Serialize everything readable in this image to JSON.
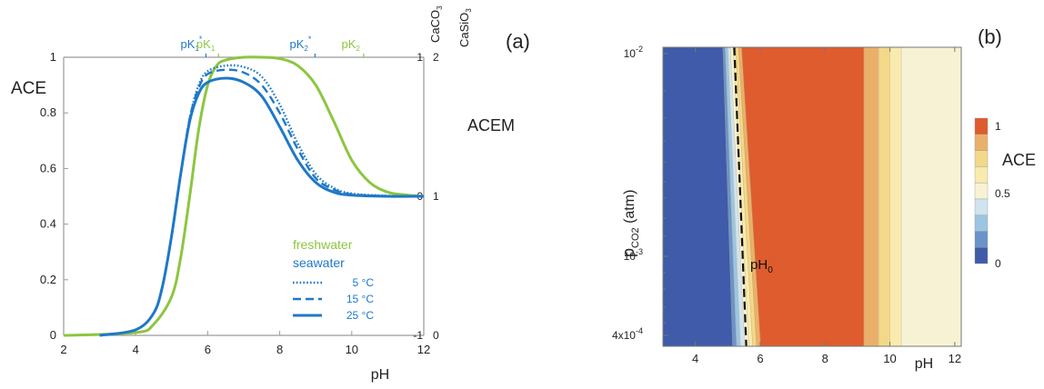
{
  "chart_data": [
    {
      "panel_label": "(a)",
      "type": "line",
      "xlabel": "pH",
      "ylabel": "ACE",
      "xlim": [
        2,
        12
      ],
      "ylim": [
        0,
        1
      ],
      "xticks": [
        "2",
        "4",
        "6",
        "8",
        "10",
        "12"
      ],
      "yticks": [
        "0",
        "0.2",
        "0.4",
        "0.6",
        "0.8",
        "1"
      ],
      "right_axes": {
        "label": "ACEM",
        "caco3": {
          "title": "CaCO",
          "sub": "3",
          "ticks": [
            "-1",
            "0",
            "1"
          ]
        },
        "casio3": {
          "title": "CaSiO",
          "sub": "3",
          "ticks": [
            "0",
            "1",
            "2"
          ]
        }
      },
      "top_marks": [
        {
          "text": "pK",
          "sub": "1",
          "sup": "*",
          "x": 5.95,
          "color": "#1f78c8"
        },
        {
          "text": "pK",
          "sub": "1",
          "sup": "",
          "x": 6.3,
          "color": "#8cc63f"
        },
        {
          "text": "pK",
          "sub": "2",
          "sup": "*",
          "x": 8.98,
          "color": "#1f78c8"
        },
        {
          "text": "pK",
          "sub": "2",
          "sup": "",
          "x": 10.33,
          "color": "#8cc63f"
        }
      ],
      "legend": {
        "freshwater": "freshwater",
        "seawater": "seawater",
        "items": [
          "5 °C",
          "15 °C",
          "25 °C"
        ]
      },
      "series": [
        {
          "name": "freshwater",
          "color": "#8cc63f",
          "style": "solid",
          "x": [
            2,
            4,
            4.5,
            5,
            5.25,
            5.5,
            5.75,
            6,
            6.25,
            6.5,
            7,
            7.5,
            8,
            8.5,
            9,
            9.5,
            10,
            10.5,
            11,
            11.5,
            12
          ],
          "y": [
            0,
            0.01,
            0.04,
            0.14,
            0.28,
            0.5,
            0.74,
            0.9,
            0.97,
            0.99,
            1.0,
            1.0,
            0.995,
            0.97,
            0.9,
            0.77,
            0.63,
            0.55,
            0.515,
            0.505,
            0.5
          ]
        },
        {
          "name": "5 °C",
          "color": "#1f78c8",
          "style": "dotted",
          "x": [
            3,
            4,
            4.5,
            4.75,
            5,
            5.25,
            5.5,
            5.75,
            6,
            6.5,
            7,
            7.5,
            8,
            8.5,
            9,
            9.5,
            10,
            11,
            12
          ],
          "y": [
            0,
            0.02,
            0.08,
            0.18,
            0.36,
            0.58,
            0.78,
            0.9,
            0.95,
            0.97,
            0.965,
            0.93,
            0.83,
            0.69,
            0.58,
            0.53,
            0.51,
            0.502,
            0.5
          ]
        },
        {
          "name": "15 °C",
          "color": "#1f78c8",
          "style": "dashed",
          "x": [
            3,
            4,
            4.5,
            4.75,
            5,
            5.25,
            5.5,
            5.75,
            6,
            6.5,
            7,
            7.5,
            8,
            8.5,
            9,
            9.5,
            10,
            11,
            12
          ],
          "y": [
            0,
            0.02,
            0.08,
            0.18,
            0.36,
            0.58,
            0.78,
            0.89,
            0.94,
            0.955,
            0.945,
            0.9,
            0.8,
            0.67,
            0.565,
            0.525,
            0.507,
            0.501,
            0.5
          ]
        },
        {
          "name": "25 °C",
          "color": "#1f78c8",
          "style": "solid",
          "x": [
            3,
            4,
            4.5,
            4.75,
            5,
            5.25,
            5.5,
            5.75,
            6,
            6.5,
            7,
            7.5,
            8,
            8.5,
            9,
            9.5,
            10,
            11,
            12
          ],
          "y": [
            0,
            0.02,
            0.08,
            0.18,
            0.36,
            0.58,
            0.77,
            0.87,
            0.91,
            0.925,
            0.91,
            0.86,
            0.75,
            0.63,
            0.55,
            0.515,
            0.504,
            0.5,
            0.5
          ]
        }
      ]
    },
    {
      "panel_label": "(b)",
      "type": "heatmap",
      "xlabel": "pH",
      "ylabel": "p",
      "ylabel_sub": "CO2",
      "ylabel_unit": " (atm)",
      "xlim": [
        3,
        12.2
      ],
      "xticks": [
        "4",
        "6",
        "8",
        "10",
        "12"
      ],
      "ylim": [
        "4x10-4",
        "10-2"
      ],
      "yscale": "log",
      "yticks": [
        {
          "base": "10",
          "exp": "-2"
        },
        {
          "base": "10",
          "exp": "-3"
        },
        {
          "base": "4x10",
          "exp": "-4"
        }
      ],
      "annotation": {
        "text": "pH",
        "sub": "0"
      },
      "colorbar": {
        "label": "ACE",
        "ticks": [
          "1",
          "0.5",
          "0"
        ],
        "colors": [
          "#3f5ba9",
          "#6a93c9",
          "#9cc5e2",
          "#cfe4ef",
          "#f7f2d4",
          "#f8ebad",
          "#f3d88a",
          "#eab06a",
          "#de5c2e"
        ]
      },
      "bands": [
        {
          "value": 0.0,
          "color": "#3f5ba9",
          "x_top": [
            3,
            4.85
          ],
          "x_bottom": [
            3,
            5.15
          ]
        },
        {
          "value": 0.1,
          "color": "#6a93c9",
          "x_top": [
            4.85,
            4.92
          ],
          "x_bottom": [
            5.15,
            5.27
          ]
        },
        {
          "value": 0.2,
          "color": "#9cc5e2",
          "x_top": [
            4.92,
            5.0
          ],
          "x_bottom": [
            5.27,
            5.39
          ]
        },
        {
          "value": 0.4,
          "color": "#cfe4ef",
          "x_top": [
            5.0,
            5.08
          ],
          "x_bottom": [
            5.39,
            5.52
          ]
        },
        {
          "value": 0.5,
          "color": "#f7f2d4",
          "x_top": [
            5.08,
            5.16
          ],
          "x_bottom": [
            5.52,
            5.65
          ]
        },
        {
          "value": 0.6,
          "color": "#f8ebad",
          "x_top": [
            5.16,
            5.24
          ],
          "x_bottom": [
            5.65,
            5.77
          ]
        },
        {
          "value": 0.7,
          "color": "#f3d88a",
          "x_top": [
            5.24,
            5.33
          ],
          "x_bottom": [
            5.77,
            5.89
          ]
        },
        {
          "value": 0.8,
          "color": "#eab06a",
          "x_top": [
            5.33,
            5.43
          ],
          "x_bottom": [
            5.89,
            6.02
          ]
        },
        {
          "value": 1.0,
          "color": "#de5c2e",
          "x_top": [
            5.43,
            9.2
          ],
          "x_bottom": [
            6.02,
            9.2
          ]
        },
        {
          "value": 0.8,
          "color": "#eab06a",
          "x_top": [
            9.2,
            9.65
          ],
          "x_bottom": [
            9.2,
            9.65
          ]
        },
        {
          "value": 0.7,
          "color": "#f3d88a",
          "x_top": [
            9.65,
            10.0
          ],
          "x_bottom": [
            9.65,
            10.0
          ]
        },
        {
          "value": 0.6,
          "color": "#f8ebad",
          "x_top": [
            10.0,
            10.35
          ],
          "x_bottom": [
            10.0,
            10.35
          ]
        },
        {
          "value": 0.5,
          "color": "#f7f2d4",
          "x_top": [
            10.35,
            12.2
          ],
          "x_bottom": [
            10.35,
            12.2
          ]
        }
      ],
      "dashed_line": {
        "x_top": [
          5.2,
          5.57
        ]
      }
    }
  ]
}
